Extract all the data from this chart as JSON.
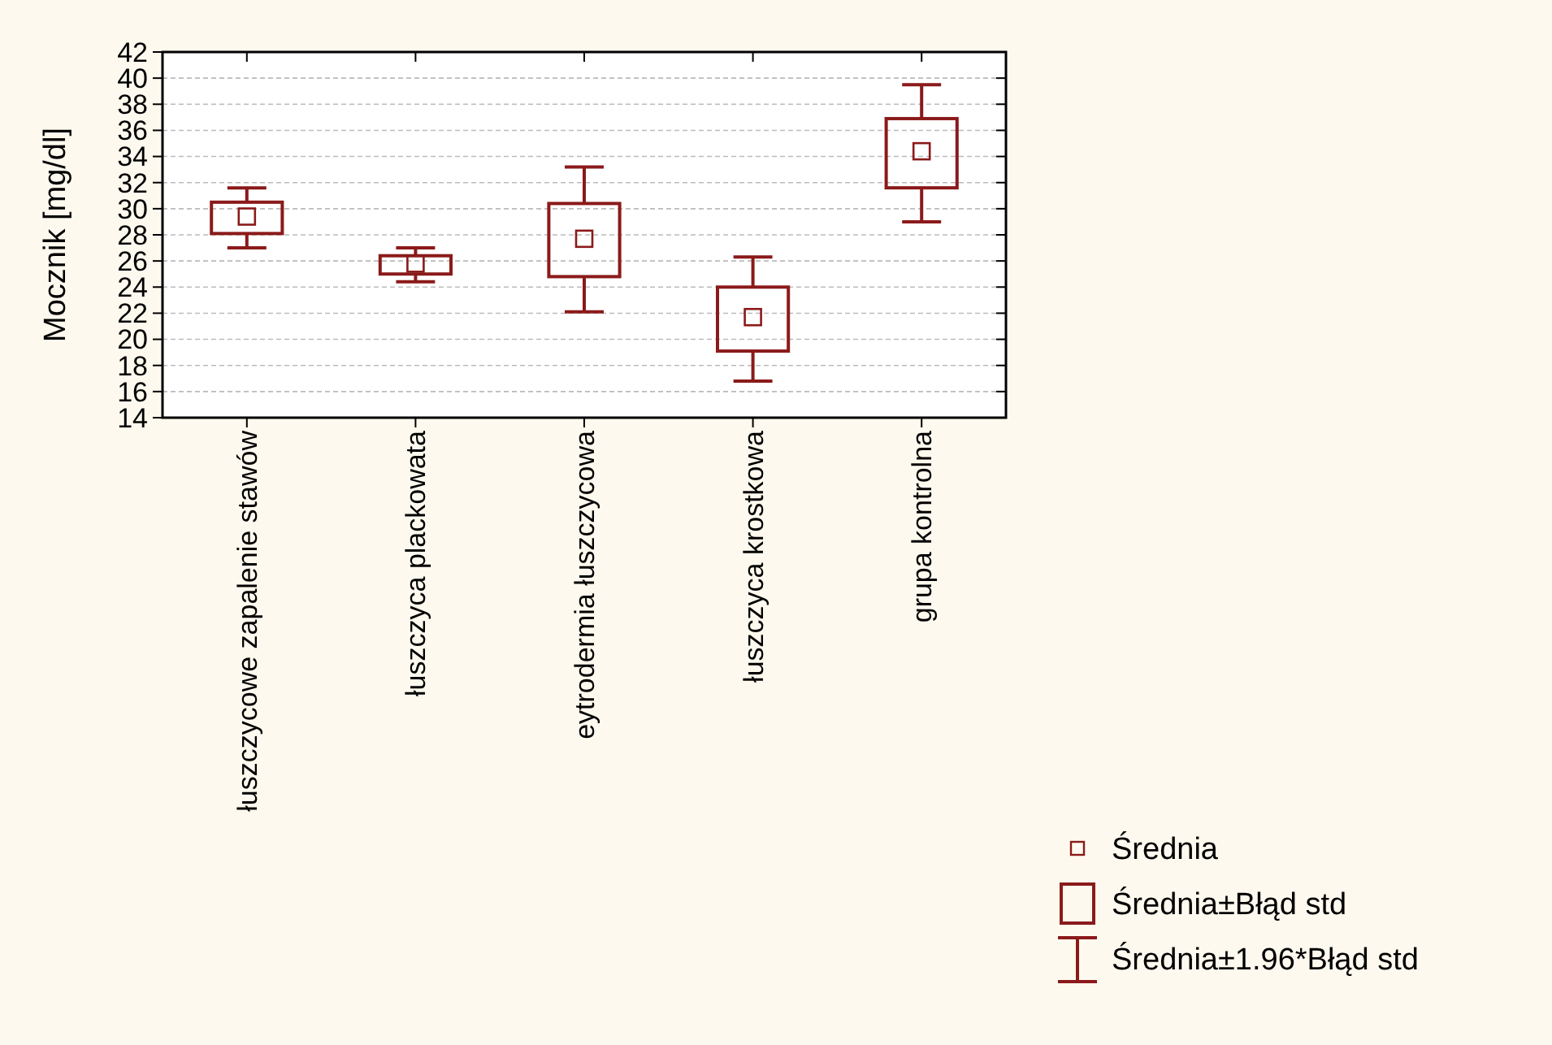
{
  "chart_data": {
    "type": "box",
    "ylabel": "Mocznik [mg/dl]",
    "categories": [
      "łuszczycowe zapalenie stawów",
      "łuszczyca plackowata",
      "eytrodermia łuszczycowa",
      "łuszczyca krostkowa",
      "grupa kontrolna"
    ],
    "series": [
      {
        "name": "Średnia",
        "color": "#8b1a1a",
        "boxes": [
          {
            "low": 27.0,
            "q1": 28.1,
            "median": 29.4,
            "q3": 30.5,
            "high": 31.6
          },
          {
            "low": 24.4,
            "q1": 25.0,
            "median": 25.8,
            "q3": 26.4,
            "high": 27.0
          },
          {
            "low": 22.1,
            "q1": 24.8,
            "median": 27.7,
            "q3": 30.4,
            "high": 33.2
          },
          {
            "low": 16.8,
            "q1": 19.1,
            "median": 21.7,
            "q3": 24.0,
            "high": 26.3
          },
          {
            "low": 29.0,
            "q1": 31.6,
            "median": 34.4,
            "q3": 36.9,
            "high": 39.5
          }
        ]
      }
    ],
    "annotations": [
      "Średnia±Błąd std",
      "Średnia±1.96*Błąd std"
    ],
    "ylim": [
      14,
      42
    ],
    "yticks": [
      14,
      16,
      18,
      20,
      22,
      24,
      26,
      28,
      30,
      32,
      34,
      36,
      38,
      40,
      42
    ],
    "grid": "y",
    "legend": "bottom right"
  }
}
